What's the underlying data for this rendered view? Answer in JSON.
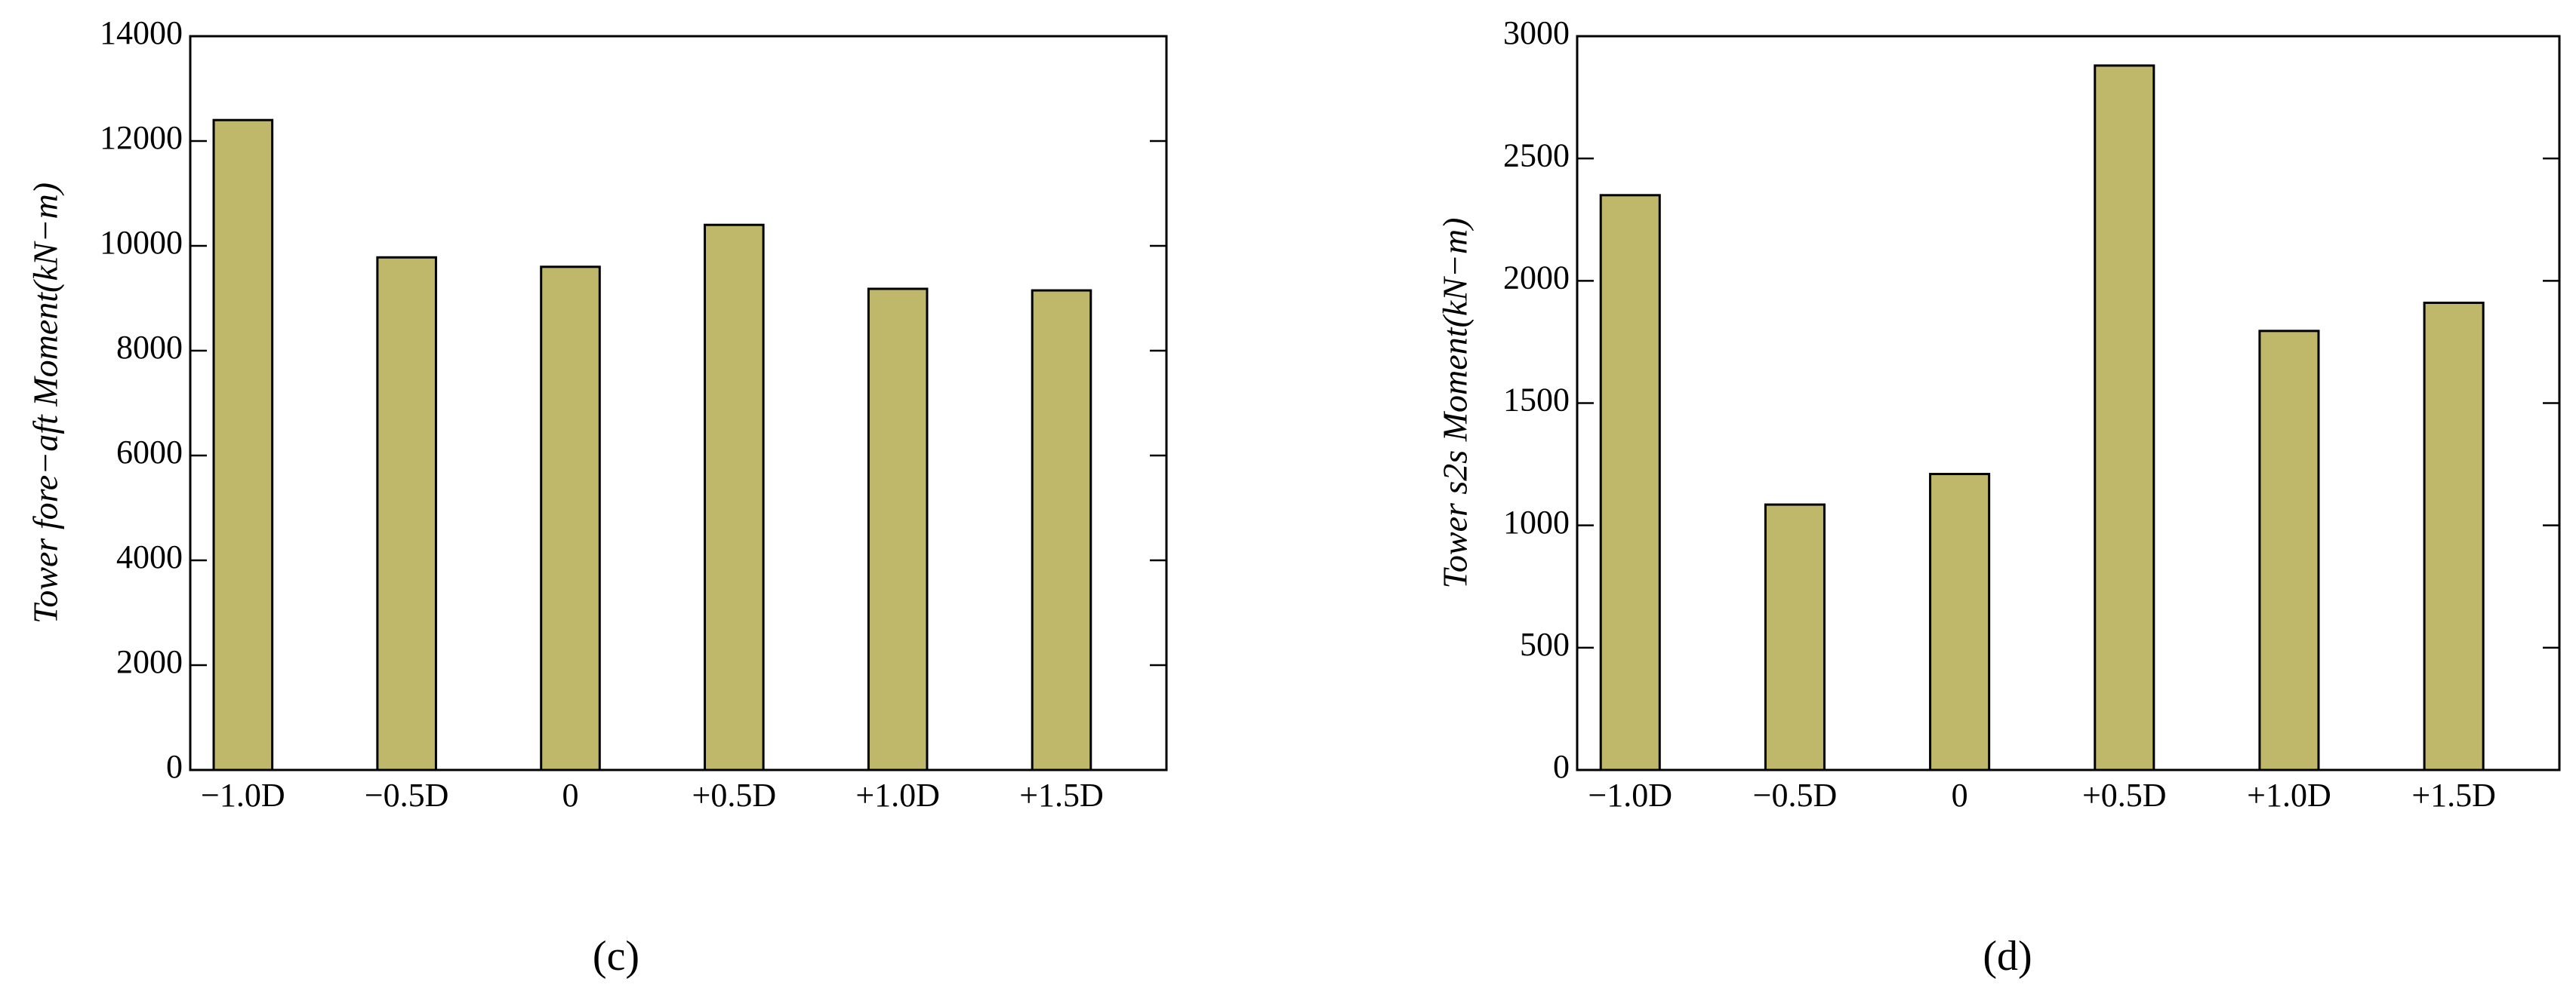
{
  "chart_data": [
    {
      "type": "bar",
      "ylabel": "Tower fore−aft Moment(kN−m)",
      "categories": [
        "−1.0D",
        "−0.5D",
        "0",
        "+0.5D",
        "+1.0D",
        "+1.5D"
      ],
      "values": [
        12400,
        9780,
        9600,
        10400,
        9180,
        9150
      ],
      "color": "#bfb86b",
      "ylim": [
        0,
        14000
      ],
      "yticks": [
        0,
        2000,
        4000,
        6000,
        8000,
        10000,
        12000,
        14000
      ],
      "caption": "(c)"
    },
    {
      "type": "bar",
      "ylabel": "Tower s2s Moment(kN−m)",
      "categories": [
        "−1.0D",
        "−0.5D",
        "0",
        "+0.5D",
        "+1.0D",
        "+1.5D"
      ],
      "values": [
        2350,
        1085,
        1210,
        2880,
        1795,
        1910
      ],
      "color": "#bfb86b",
      "ylim": [
        0,
        3000
      ],
      "yticks": [
        0,
        500,
        1000,
        1500,
        2000,
        2500,
        3000
      ],
      "caption": "(d)"
    }
  ]
}
